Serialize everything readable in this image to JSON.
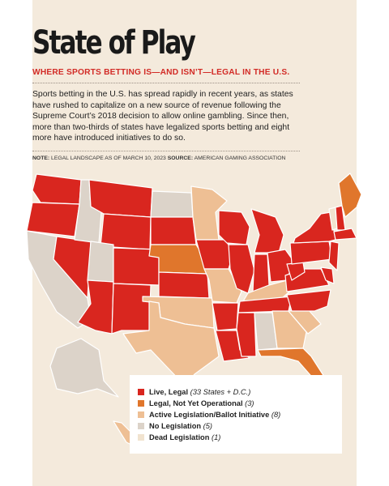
{
  "header": {
    "title": "State of Play",
    "subtitle": "WHERE SPORTS BETTING IS—AND ISN’T—LEGAL IN THE U.S.",
    "intro": "Sports betting in the U.S. has spread rapidly in recent years, as states have rushed to capitalize on a new source of revenue following the Supreme Court’s 2018 decision to allow online gambling. Since then, more than two-thirds of states have legalized sports betting and eight more have introduced initiatives to do so.",
    "note_label": "NOTE:",
    "note_text": "LEGAL LANDSCAPE AS OF MARCH 10, 2023",
    "source_label": "SOURCE:",
    "source_text": "AMERICAN GAMING ASSOCIATION"
  },
  "legend": {
    "items": [
      {
        "label": "Live, Legal",
        "count": "(33 States + D.C.)",
        "color": "#d9261f"
      },
      {
        "label": "Legal, Not Yet Operational",
        "count": "(3)",
        "color": "#e0762c"
      },
      {
        "label": "Active Legislation/Ballot Initiative",
        "count": "(8)",
        "color": "#eebf94"
      },
      {
        "label": "No Legislation",
        "count": "(5)",
        "color": "#dcd3c9"
      },
      {
        "label": "Dead Legislation",
        "count": "(1)",
        "color": "#f1e3cf"
      }
    ]
  }
}
